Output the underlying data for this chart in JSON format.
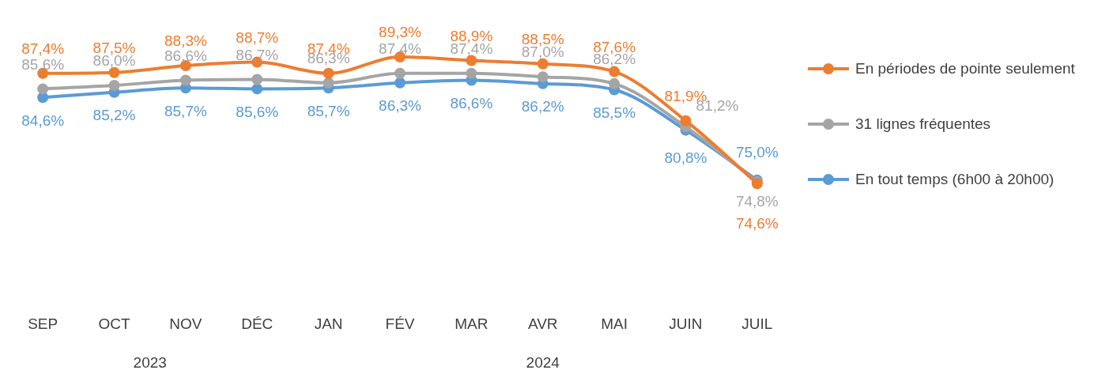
{
  "chart_data": {
    "type": "line",
    "categories": [
      "SEP",
      "OCT",
      "NOV",
      "DÉC",
      "JAN",
      "FÉV",
      "MAR",
      "AVR",
      "MAI",
      "JUIN",
      "JUIL"
    ],
    "series": [
      {
        "name": "En périodes de pointe seulement",
        "color": "#ed7d31",
        "values": [
          87.4,
          87.5,
          88.3,
          88.7,
          87.4,
          89.3,
          88.9,
          88.5,
          87.6,
          81.9,
          74.6
        ],
        "value_labels": [
          "87,4%",
          "87,5%",
          "88,3%",
          "88,7%",
          "87,4%",
          "89,3%",
          "88,9%",
          "88,5%",
          "87,6%",
          "81,9%",
          "74,6%"
        ]
      },
      {
        "name": "31 lignes fréquentes",
        "color": "#a5a5a5",
        "values": [
          85.6,
          86.0,
          86.6,
          86.7,
          86.3,
          87.4,
          87.4,
          87.0,
          86.2,
          81.2,
          74.8
        ],
        "value_labels": [
          "85,6%",
          "86,0%",
          "86,6%",
          "86,7%",
          "86,3%",
          "87,4%",
          "87,4%",
          "87,0%",
          "86,2%",
          "81,2%",
          "74,8%"
        ]
      },
      {
        "name": "En tout temps (6h00 à 20h00)",
        "color": "#5b9bd5",
        "values": [
          84.6,
          85.2,
          85.7,
          85.6,
          85.7,
          86.3,
          86.6,
          86.2,
          85.5,
          80.8,
          75.0
        ],
        "value_labels": [
          "84,6%",
          "85,2%",
          "85,7%",
          "85,6%",
          "85,7%",
          "86,3%",
          "86,6%",
          "86,2%",
          "85,5%",
          "80,8%",
          "75,0%"
        ]
      }
    ],
    "annotations": [
      "2023",
      "2024"
    ],
    "marker": "circle",
    "line_style": "solid",
    "legend": "right",
    "grid": false
  }
}
